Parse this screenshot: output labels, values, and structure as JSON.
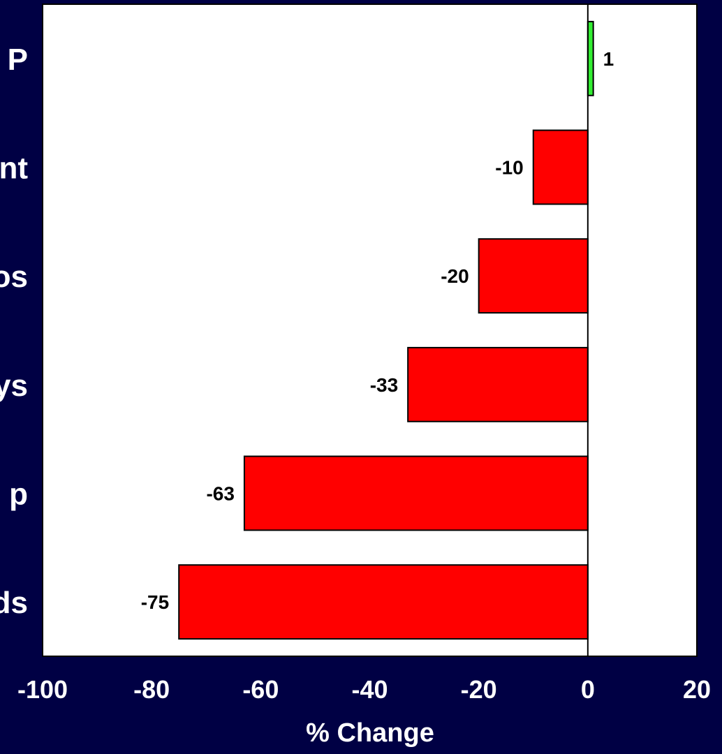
{
  "chart_data": {
    "type": "bar",
    "orientation": "horizontal",
    "categories": [
      "ds",
      "p",
      "ys",
      "os",
      "nt",
      "P"
    ],
    "values": [
      -75,
      -63,
      -33,
      -20,
      -10,
      1
    ],
    "data_labels": [
      "-75",
      "-63",
      "-33",
      "-20",
      "-10",
      "1"
    ],
    "bar_colors": [
      "#ff0000",
      "#ff0000",
      "#ff0000",
      "#ff0000",
      "#ff0000",
      "#33ee33"
    ],
    "xlabel": "% Change",
    "ylabel": "",
    "title": "",
    "xlim": [
      -100,
      20
    ],
    "xticks": [
      -100,
      -80,
      -60,
      -40,
      -20,
      0,
      20
    ],
    "xtick_labels": [
      "-100",
      "-80",
      "-60",
      "-40",
      "-20",
      "0",
      "20"
    ],
    "grid": false,
    "legend": "none"
  },
  "colors": {
    "background": "#000044",
    "plot_area": "#ffffff",
    "negative_bar": "#ff0000",
    "positive_bar": "#33ee33",
    "text": "#ffffff",
    "data_label_text": "#000000"
  }
}
